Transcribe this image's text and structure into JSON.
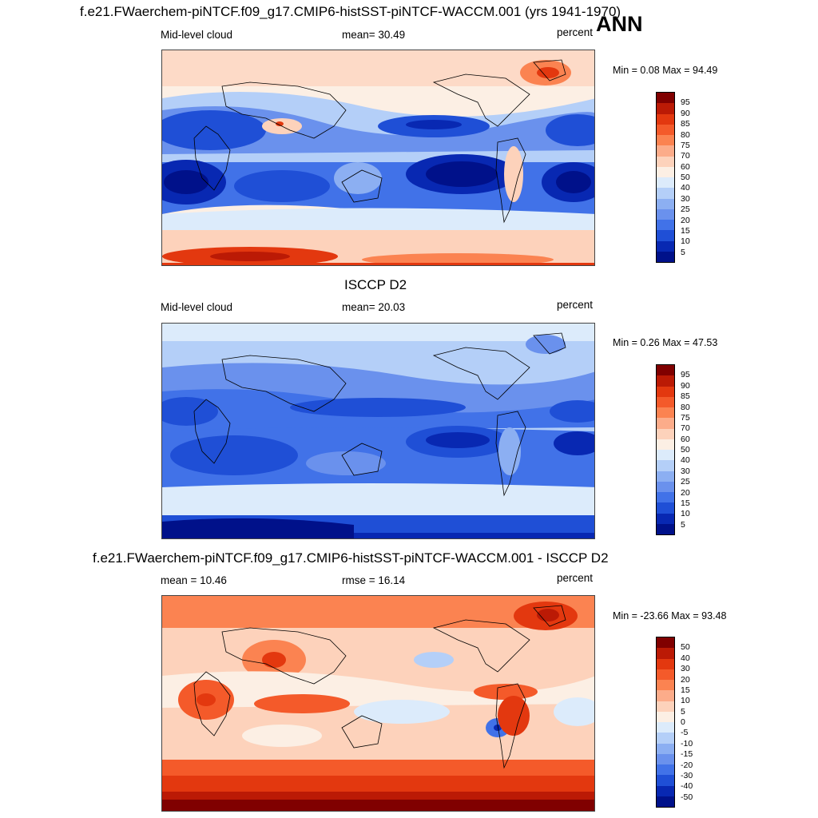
{
  "season": "ANN",
  "panels": [
    {
      "title": "f.e21.FWaerchem-piNTCF.f09_g17.CMIP6-histSST-piNTCF-WACCM.001 (yrs 1941-1970)",
      "left_label": "Mid-level cloud",
      "center_label": "mean=  30.49",
      "units": "percent",
      "minmax": "Min =   0.08 Max =  94.49",
      "colorbar_labels": [
        "95",
        "90",
        "85",
        "80",
        "75",
        "70",
        "60",
        "50",
        "40",
        "30",
        "25",
        "20",
        "15",
        "10",
        "5"
      ],
      "colors": [
        "#800000",
        "#bb1a05",
        "#e3380f",
        "#f45a2a",
        "#fb8351",
        "#fcac8a",
        "#fdd2bb",
        "#fcefe4",
        "#dcebfb",
        "#b4cff8",
        "#8caff2",
        "#6a91ed",
        "#4172e8",
        "#1f4fd6",
        "#0828b2",
        "#00118a"
      ]
    },
    {
      "title": "ISCCP D2",
      "left_label": "Mid-level cloud",
      "center_label": "mean=  20.03",
      "units": "percent",
      "minmax": "Min =   0.26 Max =  47.53",
      "colorbar_labels": [
        "95",
        "90",
        "85",
        "80",
        "75",
        "70",
        "60",
        "50",
        "40",
        "30",
        "25",
        "20",
        "15",
        "10",
        "5"
      ],
      "colors": [
        "#800000",
        "#bb1a05",
        "#e3380f",
        "#f45a2a",
        "#fb8351",
        "#fcac8a",
        "#fdd2bb",
        "#fcefe4",
        "#dcebfb",
        "#b4cff8",
        "#8caff2",
        "#6a91ed",
        "#4172e8",
        "#1f4fd6",
        "#0828b2",
        "#00118a"
      ]
    },
    {
      "title": "f.e21.FWaerchem-piNTCF.f09_g17.CMIP6-histSST-piNTCF-WACCM.001 - ISCCP D2",
      "left_label": "mean =  10.46",
      "center_label": "rmse =  16.14",
      "units": "percent",
      "minmax": "Min = -23.66 Max =  93.48",
      "colorbar_labels": [
        "50",
        "40",
        "30",
        "20",
        "15",
        "10",
        "5",
        "0",
        "-5",
        "-10",
        "-15",
        "-20",
        "-30",
        "-40",
        "-50"
      ],
      "colors": [
        "#800000",
        "#bb1a05",
        "#e3380f",
        "#f45a2a",
        "#fb8351",
        "#fcac8a",
        "#fdd2bb",
        "#fcefe4",
        "#dcebfb",
        "#b4cff8",
        "#8caff2",
        "#6a91ed",
        "#4172e8",
        "#1f4fd6",
        "#0828b2",
        "#00118a"
      ]
    }
  ]
}
